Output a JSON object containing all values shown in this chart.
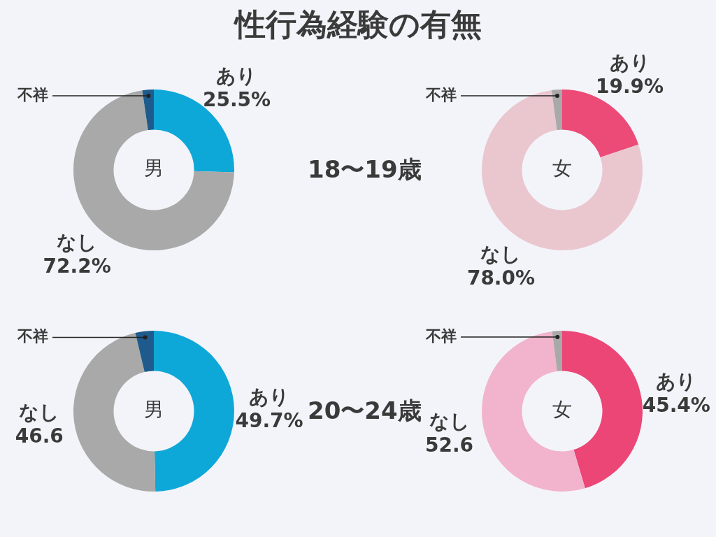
{
  "chart_data": [
    {
      "type": "donut",
      "title": "性行為経験の有無",
      "categories": [
        "あり",
        "なし",
        "不祥"
      ],
      "values": [
        25.5,
        72.2,
        2.3
      ],
      "colors": [
        "#0ea8d8",
        "#a9a9a9",
        "#1e5b8c"
      ],
      "value_labels": [
        "25.5%",
        "72.2%",
        null
      ],
      "annotations": [
        "男",
        "18〜19歳"
      ]
    },
    {
      "type": "donut",
      "categories": [
        "あり",
        "なし",
        "不祥"
      ],
      "values": [
        19.9,
        78.0,
        2.1
      ],
      "colors": [
        "#ec4a77",
        "#eac7cf",
        "#a9a9a9"
      ],
      "value_labels": [
        "19.9%",
        "78.0%",
        null
      ],
      "annotations": [
        "女"
      ]
    },
    {
      "type": "donut",
      "categories": [
        "あり",
        "なし",
        "不祥"
      ],
      "values": [
        49.7,
        46.6,
        3.7
      ],
      "colors": [
        "#0ea8d8",
        "#a9a9a9",
        "#1e5b8c"
      ],
      "value_labels": [
        "49.7%",
        "46.6",
        null
      ],
      "annotations": [
        "男",
        "20〜24歳"
      ]
    },
    {
      "type": "donut",
      "categories": [
        "あり",
        "なし",
        "不祥"
      ],
      "values": [
        45.4,
        52.6,
        2.0
      ],
      "colors": [
        "#ec4676",
        "#f2b4cc",
        "#a9a9a9"
      ],
      "value_labels": [
        "45.4%",
        "52.6",
        null
      ],
      "annotations": [
        "女"
      ]
    }
  ]
}
